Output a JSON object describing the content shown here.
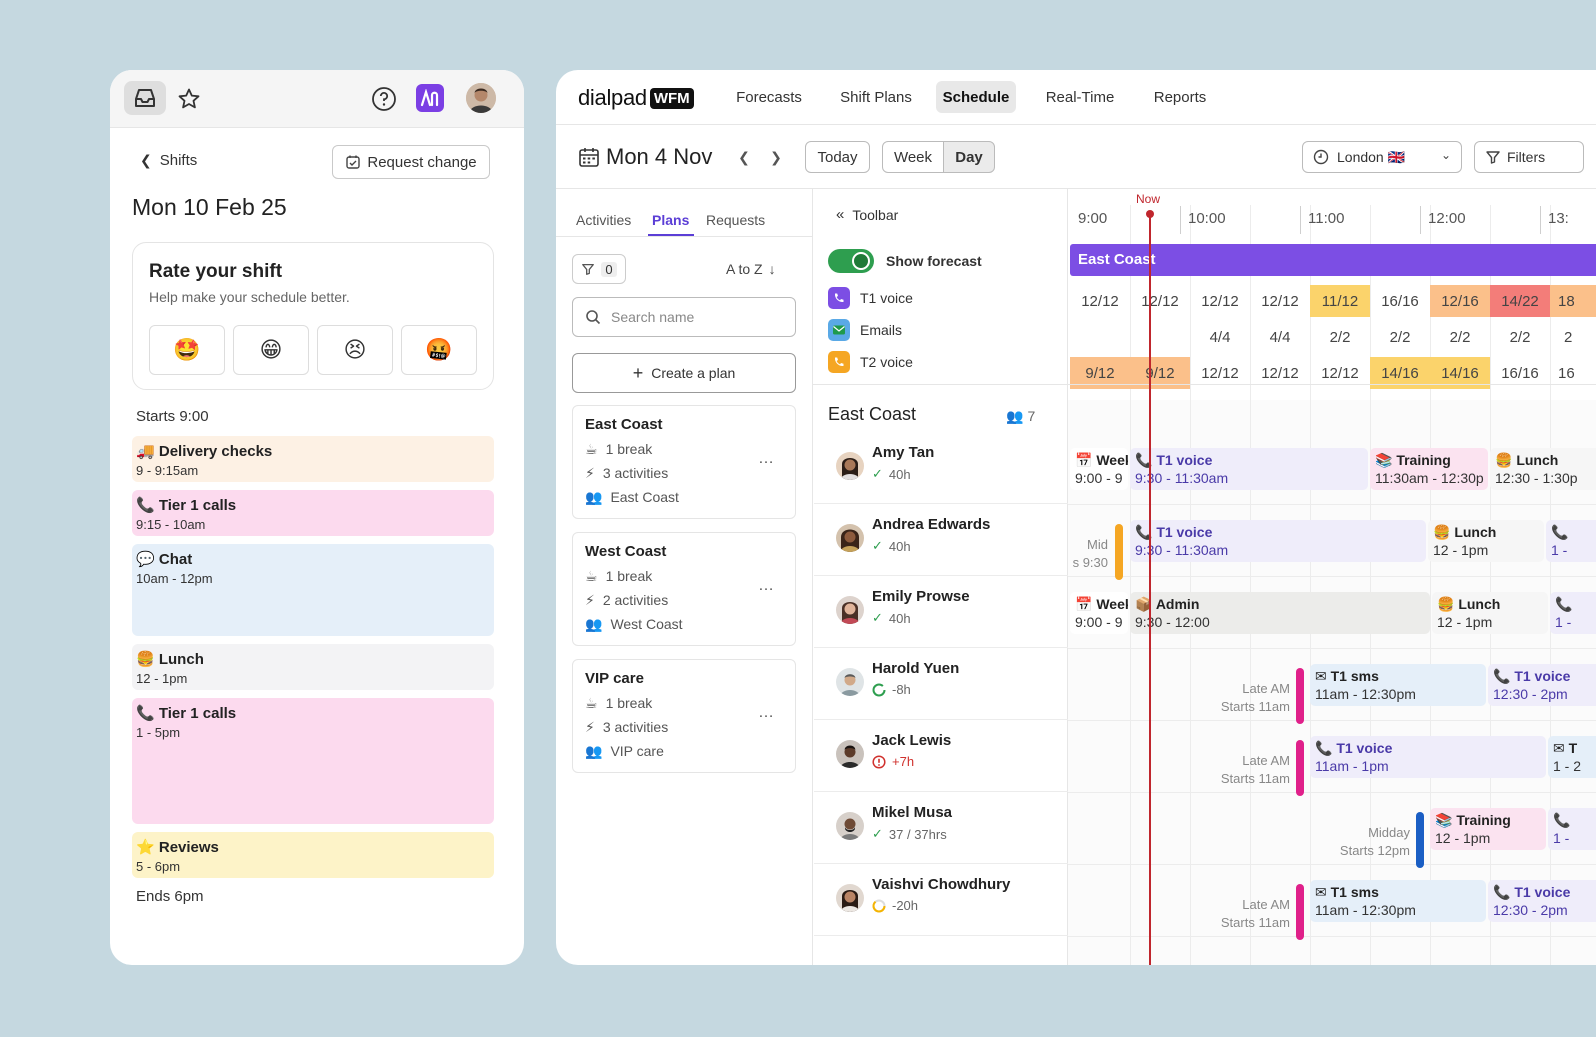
{
  "mobile": {
    "back_label": "Shifts",
    "request_change": "Request change",
    "date": "Mon 10 Feb 25",
    "rate": {
      "title": "Rate your shift",
      "subtitle": "Help make your schedule better.",
      "emojis": [
        "🤩",
        "😁",
        "😣",
        "🤬"
      ]
    },
    "starts": "Starts 9:00",
    "ends": "Ends 6pm",
    "shifts": [
      {
        "icon": "🚚",
        "title": "Delivery checks",
        "time": "9 - 9:15am"
      },
      {
        "icon": "📞",
        "title": "Tier 1 calls",
        "time": "9:15 - 10am"
      },
      {
        "icon": "💬",
        "title": "Chat",
        "time": "10am - 12pm"
      },
      {
        "icon": "🍔",
        "title": "Lunch",
        "time": "12 - 1pm"
      },
      {
        "icon": "📞",
        "title": "Tier 1 calls",
        "time": "1 - 5pm"
      },
      {
        "icon": "⭐",
        "title": "Reviews",
        "time": "5 - 6pm"
      }
    ],
    "colors": {
      "app_icon": "#7b3fe4"
    }
  },
  "app": {
    "brand": "dialpad",
    "brand_badge": "WFM",
    "nav": [
      "Forecasts",
      "Shift Plans",
      "Schedule",
      "Real-Time",
      "Reports"
    ],
    "active_nav": "Schedule",
    "date": "Mon 4 Nov",
    "today": "Today",
    "view_week": "Week",
    "view_day": "Day",
    "timezone": "London 🇬🇧",
    "filters": "Filters",
    "tabs": [
      "Activities",
      "Plans",
      "Requests"
    ],
    "active_tab": "Plans",
    "filter_count": "0",
    "sort": "A to Z",
    "search_placeholder": "Search name",
    "create_plan": "Create a plan",
    "plans": [
      {
        "name": "East Coast",
        "breaks": "1 break",
        "activities": "3 activities",
        "group": "East Coast"
      },
      {
        "name": "West Coast",
        "breaks": "1 break",
        "activities": "2 activities",
        "group": "West Coast"
      },
      {
        "name": "VIP care",
        "breaks": "1 break",
        "activities": "3 activities",
        "group": "VIP care"
      }
    ],
    "toolbar": "Toolbar",
    "show_forecast": "Show forecast",
    "legend": [
      "T1 voice",
      "Emails",
      "T2 voice"
    ],
    "team": "East Coast",
    "team_count": "7",
    "now": "Now",
    "hours": [
      "9:00",
      "10:00",
      "11:00",
      "12:00",
      "13:"
    ],
    "banner": "East Coast",
    "forecast_rows": [
      [
        "12/12",
        "12/12",
        "12/12",
        "12/12",
        "11/12",
        "16/16",
        "12/16",
        "14/22",
        "18"
      ],
      [
        "",
        "",
        "4/4",
        "4/4",
        "2/2",
        "2/2",
        "2/2",
        "2/2",
        "2"
      ],
      [
        "9/12",
        "9/12",
        "12/12",
        "12/12",
        "12/12",
        "14/16",
        "14/16",
        "16/16",
        "16"
      ]
    ],
    "employees": [
      {
        "name": "Amy Tan",
        "hours": "40h"
      },
      {
        "name": "Andrea Edwards",
        "hours": "40h"
      },
      {
        "name": "Emily Prowse",
        "hours": "40h"
      },
      {
        "name": "Harold Yuen",
        "hours": "-8h"
      },
      {
        "name": "Jack Lewis",
        "hours": "+7h"
      },
      {
        "name": "Mikel Musa",
        "hours": "37 / 37hrs"
      },
      {
        "name": "Vaishvi Chowdhury",
        "hours": "-20h"
      }
    ],
    "events": {
      "r0": [
        {
          "t": "Week",
          "s": "9:00 - 9"
        },
        {
          "t": "T1 voice",
          "s": "9:30 - 11:30am"
        },
        {
          "t": "Training",
          "s": "11:30am - 12:30p"
        },
        {
          "t": "Lunch",
          "s": "12:30 - 1:30p"
        }
      ],
      "r1": [
        {
          "t": "T1 voice",
          "s": "9:30 - 11:30am"
        },
        {
          "t": "Lunch",
          "s": "12 - 1pm"
        },
        {
          "t": "",
          "s": "1 -"
        }
      ],
      "r2": [
        {
          "t": "Week",
          "s": "9:00 - 9"
        },
        {
          "t": "Admin",
          "s": "9:30 - 12:00"
        },
        {
          "t": "Lunch",
          "s": "12 - 1pm"
        },
        {
          "t": "",
          "s": "1 -"
        }
      ],
      "r3": [
        {
          "t": "T1 sms",
          "s": "11am - 12:30pm"
        },
        {
          "t": "T1 voice",
          "s": "12:30 - 2pm"
        }
      ],
      "r4": [
        {
          "t": "T1 voice",
          "s": "11am - 1pm"
        },
        {
          "t": "T",
          "s": "1 - 2"
        }
      ],
      "r5": [
        {
          "t": "Training",
          "s": "12 - 1pm"
        },
        {
          "t": "",
          "s": "1 -"
        }
      ],
      "r6": [
        {
          "t": "T1 sms",
          "s": "11am - 12:30pm"
        },
        {
          "t": "T1 voice",
          "s": "12:30 - 2pm"
        }
      ]
    },
    "shift_labels": {
      "mid": [
        "Mid",
        "s 9:30"
      ],
      "late_am": [
        "Late AM",
        "Starts 11am"
      ],
      "midday": [
        "Midday",
        "Starts 12pm"
      ]
    },
    "colors": {
      "accent": "#7c4ee4",
      "now_line": "#c0262d",
      "late_bar": "#e0208a",
      "mid_bar": "#f5a623",
      "midday_bar": "#1a5ec4"
    }
  }
}
